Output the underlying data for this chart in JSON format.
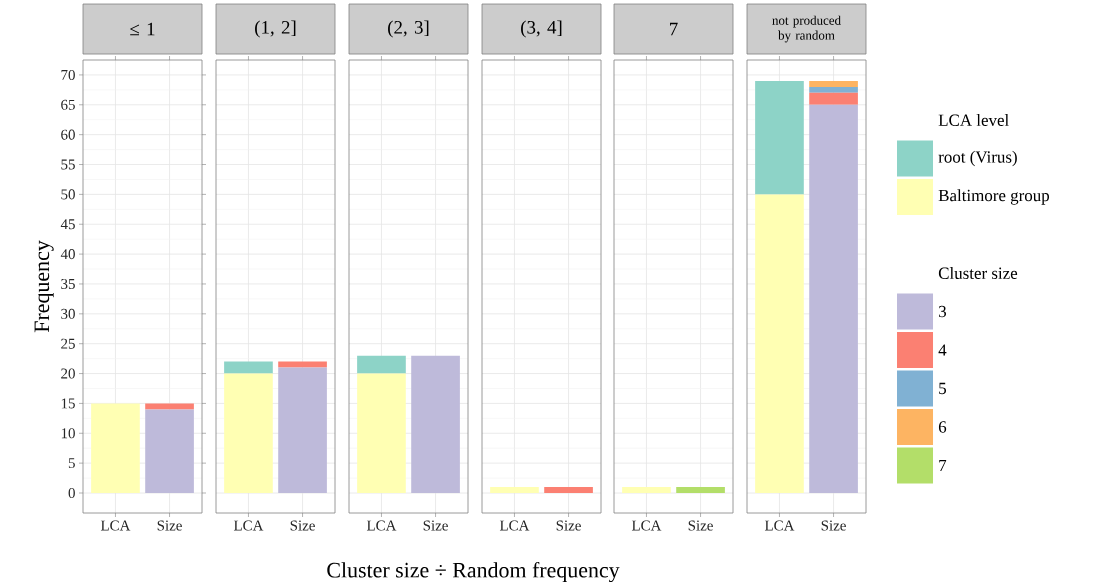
{
  "chart_data": [
    {
      "type": "bar",
      "stacked": true,
      "title": "≤ 1",
      "ylabel": "Frequency",
      "xlabel": "Cluster size ÷ Random frequency",
      "categories": [
        "LCA",
        "Size"
      ],
      "ylim": [
        -3.35,
        72.5
      ],
      "yticks": [
        0,
        5,
        10,
        15,
        20,
        25,
        30,
        35,
        40,
        45,
        50,
        55,
        60,
        65,
        70
      ],
      "grid": true,
      "series": [
        {
          "color": "#ffffb3",
          "values": [
            15,
            null
          ]
        },
        {
          "color": "#bebada",
          "values": [
            null,
            14
          ]
        },
        {
          "color": "#fb8072",
          "values": [
            null,
            1
          ]
        }
      ]
    },
    {
      "type": "bar",
      "stacked": true,
      "title": "(1, 2]",
      "categories": [
        "LCA",
        "Size"
      ],
      "ylim": [
        -3.35,
        72.5
      ],
      "tick_labels": "x",
      "grid": true,
      "series": [
        {
          "color": "#ffffb3",
          "values": [
            20,
            null
          ]
        },
        {
          "color": "#8dd3c7",
          "values": [
            2,
            null
          ]
        },
        {
          "color": "#bebada",
          "values": [
            null,
            21
          ]
        },
        {
          "color": "#fb8072",
          "values": [
            null,
            1
          ]
        }
      ]
    },
    {
      "type": "bar",
      "stacked": true,
      "title": "(2, 3]",
      "categories": [
        "LCA",
        "Size"
      ],
      "ylim": [
        -3.35,
        72.5
      ],
      "tick_labels": "x",
      "grid": true,
      "series": [
        {
          "color": "#ffffb3",
          "values": [
            20,
            null
          ]
        },
        {
          "color": "#8dd3c7",
          "values": [
            3,
            null
          ]
        },
        {
          "color": "#bebada",
          "values": [
            null,
            23
          ]
        }
      ]
    },
    {
      "type": "bar",
      "stacked": true,
      "title": "(3, 4]",
      "categories": [
        "LCA",
        "Size"
      ],
      "ylim": [
        -3.35,
        72.5
      ],
      "tick_labels": "x",
      "grid": true,
      "series": [
        {
          "color": "#ffffb3",
          "values": [
            1,
            null
          ]
        },
        {
          "color": "#fb8072",
          "values": [
            null,
            1
          ]
        }
      ]
    },
    {
      "type": "bar",
      "stacked": true,
      "title": "7",
      "categories": [
        "LCA",
        "Size"
      ],
      "ylim": [
        -3.35,
        72.5
      ],
      "tick_labels": "x",
      "grid": true,
      "series": [
        {
          "color": "#ffffb3",
          "values": [
            1,
            null
          ]
        },
        {
          "color": "#b3de69",
          "values": [
            null,
            1
          ]
        }
      ]
    },
    {
      "type": "bar",
      "stacked": true,
      "title": "not produced by random",
      "categories": [
        "LCA",
        "Size"
      ],
      "ylim": [
        -3.35,
        72.5
      ],
      "tick_labels": "x",
      "grid": true,
      "legend": "right",
      "legend_title": "LCA level",
      "annotations": [
        "Cluster size"
      ],
      "series": [
        {
          "name": "Baltimore group",
          "color": "#ffffb3",
          "values": [
            50,
            null
          ]
        },
        {
          "name": "root (Virus)",
          "color": "#8dd3c7",
          "values": [
            19,
            null
          ]
        },
        {
          "name": "3",
          "color": "#bebada",
          "values": [
            null,
            65
          ]
        },
        {
          "name": "4",
          "color": "#fb8072",
          "values": [
            null,
            2
          ]
        },
        {
          "name": "5",
          "color": "#80b1d3",
          "values": [
            null,
            1
          ]
        },
        {
          "name": "6",
          "color": "#fdb462",
          "values": [
            null,
            1
          ]
        },
        {
          "name": "7",
          "color": "#b3de69",
          "values": [
            null,
            null
          ]
        }
      ]
    }
  ]
}
